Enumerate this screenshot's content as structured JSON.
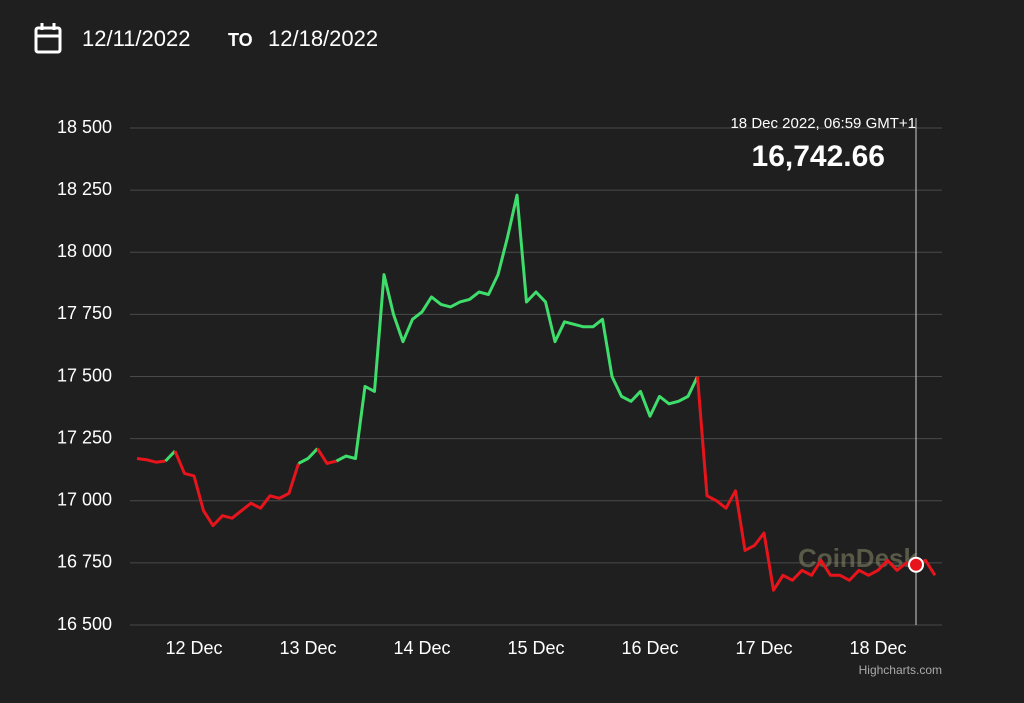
{
  "header": {
    "from": "12/11/2022",
    "to_word": "TO",
    "to": "12/18/2022"
  },
  "chart_data": {
    "type": "line",
    "categories": [
      null,
      null,
      null,
      null,
      null,
      null,
      "12 Dec",
      null,
      null,
      null,
      null,
      null,
      null,
      null,
      null,
      null,
      null,
      null,
      "13 Dec",
      null,
      null,
      null,
      null,
      null,
      null,
      null,
      null,
      null,
      null,
      null,
      "14 Dec",
      null,
      null,
      null,
      null,
      null,
      null,
      null,
      null,
      null,
      null,
      null,
      "15 Dec",
      null,
      null,
      null,
      null,
      null,
      null,
      null,
      null,
      null,
      null,
      null,
      "16 Dec",
      null,
      null,
      null,
      null,
      null,
      null,
      null,
      null,
      null,
      null,
      null,
      "17 Dec",
      null,
      null,
      null,
      null,
      null,
      null,
      null,
      null,
      null,
      null,
      null,
      "18 Dec",
      null,
      null,
      null,
      null,
      null,
      null
    ],
    "values": [
      17170,
      17165,
      17155,
      17160,
      17200,
      17110,
      17100,
      16960,
      16900,
      16940,
      16930,
      16960,
      16990,
      16970,
      17020,
      17010,
      17030,
      17150,
      17170,
      17210,
      17150,
      17160,
      17180,
      17170,
      17460,
      17440,
      17910,
      17750,
      17640,
      17730,
      17760,
      17820,
      17790,
      17780,
      17800,
      17810,
      17840,
      17830,
      17910,
      18060,
      18230,
      17800,
      17840,
      17800,
      17640,
      17720,
      17710,
      17700,
      17700,
      17730,
      17500,
      17420,
      17400,
      17440,
      17340,
      17420,
      17390,
      17400,
      17420,
      17500,
      17020,
      17000,
      16970,
      17040,
      16800,
      16820,
      16870,
      16640,
      16700,
      16680,
      16720,
      16700,
      16760,
      16700,
      16700,
      16680,
      16720,
      16700,
      16720,
      16760,
      16720,
      16750,
      16742.66,
      16760,
      16700
    ],
    "up_color": "#3fdd6b",
    "down_color": "#e8141c",
    "ylim": [
      16500,
      18500
    ],
    "yticks": [
      {
        "value": 16500,
        "label": "16 500"
      },
      {
        "value": 16750,
        "label": "16 750"
      },
      {
        "value": 17000,
        "label": "17 000"
      },
      {
        "value": 17250,
        "label": "17 250"
      },
      {
        "value": 17500,
        "label": "17 500"
      },
      {
        "value": 17750,
        "label": "17 750"
      },
      {
        "value": 18000,
        "label": "18 000"
      },
      {
        "value": 18250,
        "label": "18 250"
      },
      {
        "value": 18500,
        "label": "18 500"
      }
    ],
    "grid": true,
    "tooltip": {
      "date": "18 Dec 2022, 06:59 GMT+1",
      "value": 16742.66,
      "label": "16,742.66"
    },
    "watermark": "CoinDesk",
    "credits": "Highcharts.com"
  }
}
